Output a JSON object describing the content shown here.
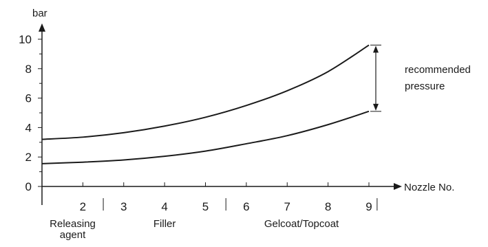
{
  "chart_data": {
    "type": "line",
    "ylabel": "bar",
    "xlabel": "Nozzle No.",
    "ylim": [
      0,
      10
    ],
    "xlim": [
      1,
      9
    ],
    "y_ticks": [
      0,
      2,
      4,
      6,
      8,
      10
    ],
    "x_ticks": [
      2,
      3,
      4,
      5,
      6,
      7,
      8,
      9
    ],
    "grid": false,
    "series": [
      {
        "x": [
          1,
          2,
          3,
          4,
          5,
          6,
          7,
          8,
          9
        ],
        "values": [
          3.2,
          3.35,
          3.65,
          4.1,
          4.7,
          5.5,
          6.5,
          7.8,
          9.6
        ]
      },
      {
        "x": [
          1,
          2,
          3,
          4,
          5,
          6,
          7,
          8,
          9
        ],
        "values": [
          1.55,
          1.65,
          1.8,
          2.05,
          2.4,
          2.9,
          3.45,
          4.2,
          5.1
        ]
      }
    ],
    "groups": [
      {
        "label_lines": [
          "Releasing",
          "agent"
        ],
        "range": [
          1,
          2.5
        ]
      },
      {
        "label_lines": [
          "Filler"
        ],
        "range": [
          2.5,
          5.5
        ]
      },
      {
        "label_lines": [
          "Gelcoat/Topcoat"
        ],
        "range": [
          5.5,
          9.2
        ]
      }
    ],
    "annotation": {
      "label_lines": [
        "recommended",
        "pressure"
      ],
      "x": 9,
      "y_low": 5.1,
      "y_high": 9.6
    }
  }
}
